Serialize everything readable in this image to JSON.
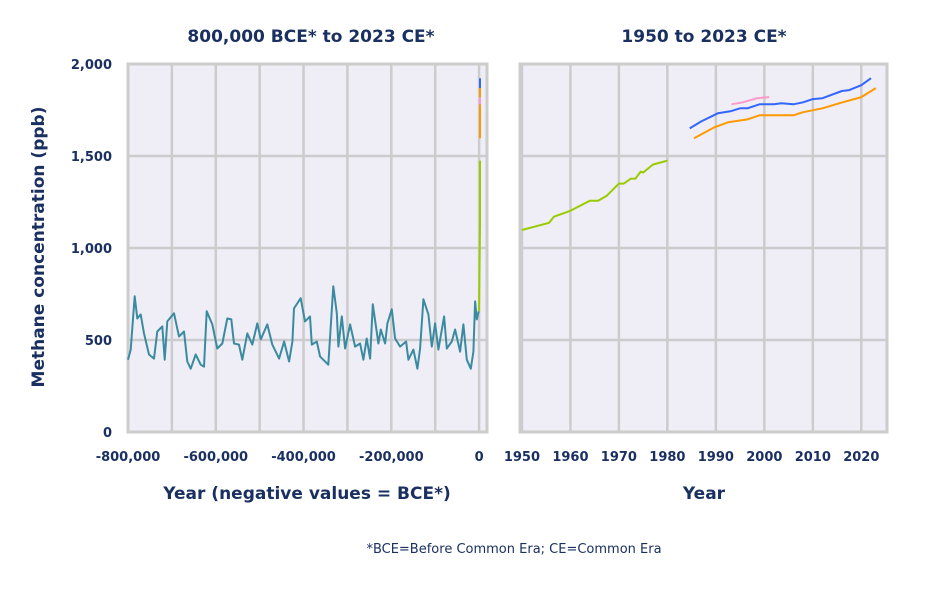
{
  "chart_data": [
    {
      "type": "line",
      "title": "800,000 BCE* to 2023 CE*",
      "xlabel": "Year (negative values = BCE*)",
      "ylabel": "Methane concentration (ppb)",
      "xlim": [
        -800000,
        18000
      ],
      "ylim": [
        0,
        2000
      ],
      "grid": true,
      "xticks": [
        -800000,
        -700000,
        -600000,
        -500000,
        -400000,
        -300000,
        -200000,
        -100000,
        0
      ],
      "xtick_labels": [
        "-800,000",
        "",
        "-600,000",
        "",
        "-400,000",
        "",
        "-200,000",
        "",
        "0"
      ],
      "yticks": [
        0,
        500,
        1000,
        1500,
        2000
      ],
      "ytick_labels": [
        "0",
        "500",
        "1,000",
        "1,500",
        "2,000"
      ],
      "series": [
        {
          "color": "#3a8ba0",
          "x": [
            -800000,
            -793800,
            -784700,
            -778800,
            -771100,
            -763500,
            -752100,
            -740700,
            -733200,
            -721800,
            -716400,
            -710400,
            -695200,
            -683800,
            -672400,
            -664800,
            -657100,
            -645700,
            -634300,
            -626800,
            -620600,
            -607900,
            -596500,
            -585100,
            -573700,
            -564600,
            -558400,
            -547000,
            -539500,
            -528100,
            -516700,
            -505300,
            -497500,
            -482500,
            -471100,
            -455800,
            -444400,
            -433000,
            -425500,
            -421700,
            -406400,
            -396600,
            -385200,
            -381300,
            -369900,
            -362400,
            -343500,
            -332100,
            -324300,
            -320700,
            -312900,
            -305400,
            -294000,
            -282600,
            -271200,
            -263700,
            -256000,
            -248400,
            -242300,
            -229500,
            -224000,
            -214200,
            -209000,
            -199000,
            -191500,
            -180100,
            -166400,
            -161100,
            -149700,
            -140600,
            -134500,
            -127000,
            -115600,
            -107800,
            -100300,
            -92800,
            -79800,
            -73600,
            -62200,
            -54700,
            -43300,
            -35800,
            -28000,
            -18900,
            -13000,
            -9100,
            -5200,
            -1000
          ],
          "y": [
            393,
            448,
            738,
            617,
            639,
            536,
            421,
            399,
            546,
            574,
            393,
            601,
            645,
            519,
            546,
            383,
            344,
            421,
            366,
            355,
            656,
            585,
            454,
            481,
            617,
            612,
            481,
            475,
            393,
            536,
            475,
            590,
            503,
            585,
            475,
            399,
            492,
            383,
            492,
            672,
            727,
            601,
            628,
            475,
            492,
            410,
            366,
            792,
            645,
            464,
            628,
            454,
            585,
            464,
            481,
            393,
            508,
            399,
            694,
            481,
            557,
            481,
            590,
            667,
            508,
            464,
            492,
            393,
            448,
            344,
            454,
            721,
            639,
            464,
            590,
            448,
            628,
            454,
            492,
            557,
            437,
            585,
            393,
            344,
            437,
            710,
            612,
            656
          ]
        }
      ]
    },
    {
      "type": "line",
      "title": "1950 to 2023 CE*",
      "xlabel": "Year",
      "xlim": [
        1949.6,
        2025.3
      ],
      "ylim": [
        0,
        2000
      ],
      "grid": true,
      "xticks": [
        1950,
        1960,
        1970,
        1980,
        1990,
        2000,
        2010,
        2020
      ],
      "xtick_labels": [
        "1950",
        "1960",
        "1970",
        "1980",
        "1990",
        "2000",
        "2010",
        "2020"
      ],
      "series": [
        {
          "color": "#99cc00",
          "x": [
            1950,
            1955.6,
            1956.6,
            1960,
            1964,
            1965.7,
            1967.5,
            1970,
            1971,
            1972.5,
            1973.4,
            1974.5,
            1975,
            1977,
            1980
          ],
          "y": [
            1098,
            1137,
            1170,
            1202,
            1257,
            1257,
            1284,
            1350,
            1350,
            1377,
            1377,
            1415,
            1410,
            1453,
            1475
          ]
        },
        {
          "color": "#3366ff",
          "x": [
            1984.6,
            1987,
            1990.4,
            1993,
            1995,
            1996.5,
            1999,
            2002,
            2003.5,
            2006,
            2008,
            2010,
            2012,
            2016,
            2017.5,
            2020,
            2022
          ],
          "y": [
            1650,
            1688,
            1732,
            1743,
            1759,
            1759,
            1781,
            1781,
            1787,
            1781,
            1792,
            1809,
            1814,
            1853,
            1858,
            1885,
            1923
          ]
        },
        {
          "color": "#ff9900",
          "x": [
            1985.5,
            1989.7,
            1992.5,
            1996.5,
            1999,
            2003,
            2006,
            2008,
            2012,
            2015.5,
            2020,
            2023
          ],
          "y": [
            1596,
            1656,
            1683,
            1699,
            1721,
            1721,
            1721,
            1738,
            1759,
            1787,
            1820,
            1869
          ]
        },
        {
          "color": "#ff99cc",
          "x": [
            1993.2,
            1995.6,
            1998.5,
            2001
          ],
          "y": [
            1781,
            1792,
            1814,
            1820
          ]
        }
      ]
    }
  ],
  "footnote": "*BCE=Before Common Era; CE=Common Era",
  "colors": {
    "plot_background": "#efedf6",
    "grid": "#cccccc",
    "text": "#1a3060"
  }
}
